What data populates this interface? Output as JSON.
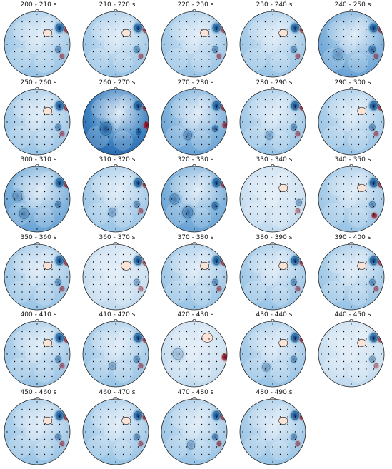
{
  "chart_data": {
    "type": "heatmap",
    "description_free": true,
    "colormap": [
      "#08306b",
      "#2171b5",
      "#6baed6",
      "#c6dbef",
      "#f7fbff",
      "#fddbc7",
      "#d6604d",
      "#b2182b",
      "#67001f"
    ],
    "panels": [
      {
        "title": "200 - 210 s",
        "bg": 0.3,
        "blobs": [
          [
            "B",
            0.84,
            0.25,
            0.16,
            1.0
          ],
          [
            "R",
            0.95,
            0.28,
            0.1,
            0.8
          ],
          [
            "P",
            0.66,
            0.33,
            0.12,
            0.5
          ],
          [
            "B",
            0.82,
            0.58,
            0.12,
            0.6
          ],
          [
            "R",
            0.88,
            0.68,
            0.09,
            0.6
          ]
        ]
      },
      {
        "title": "210 - 220 s",
        "bg": 0.28,
        "blobs": [
          [
            "B",
            0.84,
            0.25,
            0.16,
            1.0
          ],
          [
            "R",
            0.95,
            0.28,
            0.1,
            0.8
          ],
          [
            "P",
            0.66,
            0.33,
            0.12,
            0.5
          ],
          [
            "B",
            0.82,
            0.58,
            0.12,
            0.6
          ],
          [
            "R",
            0.88,
            0.68,
            0.09,
            0.6
          ]
        ]
      },
      {
        "title": "220 - 230 s",
        "bg": 0.26,
        "blobs": [
          [
            "B",
            0.84,
            0.25,
            0.16,
            1.0
          ],
          [
            "R",
            0.95,
            0.28,
            0.1,
            0.7
          ],
          [
            "P",
            0.66,
            0.33,
            0.12,
            0.5
          ],
          [
            "B",
            0.82,
            0.58,
            0.12,
            0.6
          ],
          [
            "R",
            0.88,
            0.68,
            0.09,
            0.6
          ]
        ]
      },
      {
        "title": "230 - 240 s",
        "bg": 0.3,
        "blobs": [
          [
            "B",
            0.84,
            0.25,
            0.16,
            1.0
          ],
          [
            "R",
            0.95,
            0.28,
            0.1,
            0.8
          ],
          [
            "P",
            0.66,
            0.33,
            0.12,
            0.5
          ],
          [
            "B",
            0.82,
            0.58,
            0.12,
            0.6
          ],
          [
            "R",
            0.88,
            0.68,
            0.09,
            0.6
          ]
        ]
      },
      {
        "title": "240 - 250 s",
        "bg": 0.45,
        "blobs": [
          [
            "B",
            0.84,
            0.25,
            0.16,
            1.0
          ],
          [
            "R",
            0.95,
            0.28,
            0.1,
            0.8
          ],
          [
            "B",
            0.82,
            0.58,
            0.14,
            0.8
          ],
          [
            "R",
            0.88,
            0.68,
            0.09,
            0.6
          ],
          [
            "B",
            0.3,
            0.65,
            0.22,
            0.4
          ]
        ]
      },
      {
        "title": "250 - 260 s",
        "bg": 0.3,
        "blobs": [
          [
            "B",
            0.84,
            0.25,
            0.16,
            1.0
          ],
          [
            "R",
            0.95,
            0.28,
            0.1,
            0.8
          ],
          [
            "P",
            0.66,
            0.33,
            0.12,
            0.5
          ],
          [
            "B",
            0.82,
            0.58,
            0.12,
            0.6
          ],
          [
            "R",
            0.88,
            0.68,
            0.09,
            0.6
          ]
        ]
      },
      {
        "title": "260 - 270 s",
        "bg": 0.75,
        "blobs": [
          [
            "B",
            0.84,
            0.25,
            0.16,
            1.0
          ],
          [
            "R",
            0.95,
            0.28,
            0.1,
            0.8
          ],
          [
            "R",
            0.97,
            0.55,
            0.12,
            1.0
          ],
          [
            "B",
            0.85,
            0.65,
            0.12,
            1.0
          ],
          [
            "B",
            0.35,
            0.6,
            0.25,
            0.8
          ]
        ]
      },
      {
        "title": "270 - 280 s",
        "bg": 0.5,
        "blobs": [
          [
            "B",
            0.84,
            0.25,
            0.16,
            1.0
          ],
          [
            "R",
            0.95,
            0.28,
            0.1,
            0.8
          ],
          [
            "R",
            0.97,
            0.55,
            0.1,
            0.8
          ],
          [
            "B",
            0.82,
            0.6,
            0.12,
            0.8
          ],
          [
            "B",
            0.4,
            0.7,
            0.18,
            0.5
          ]
        ]
      },
      {
        "title": "280 - 290 s",
        "bg": 0.4,
        "blobs": [
          [
            "B",
            0.84,
            0.25,
            0.16,
            1.0
          ],
          [
            "R",
            0.95,
            0.28,
            0.1,
            0.8
          ],
          [
            "B",
            0.82,
            0.58,
            0.12,
            0.6
          ],
          [
            "R",
            0.88,
            0.68,
            0.09,
            0.6
          ],
          [
            "B",
            0.45,
            0.7,
            0.16,
            0.4
          ]
        ]
      },
      {
        "title": "290 - 300 s",
        "bg": 0.3,
        "blobs": [
          [
            "B",
            0.84,
            0.25,
            0.16,
            1.0
          ],
          [
            "R",
            0.95,
            0.28,
            0.1,
            0.8
          ],
          [
            "P",
            0.66,
            0.33,
            0.12,
            0.5
          ],
          [
            "B",
            0.82,
            0.58,
            0.12,
            0.6
          ],
          [
            "R",
            0.88,
            0.68,
            0.09,
            0.6
          ]
        ]
      },
      {
        "title": "300 - 310 s",
        "bg": 0.45,
        "blobs": [
          [
            "B",
            0.84,
            0.25,
            0.16,
            1.0
          ],
          [
            "R",
            0.95,
            0.28,
            0.1,
            0.8
          ],
          [
            "B",
            0.82,
            0.58,
            0.12,
            0.6
          ],
          [
            "B",
            0.3,
            0.72,
            0.2,
            0.5
          ],
          [
            "B",
            0.2,
            0.45,
            0.2,
            0.4
          ]
        ]
      },
      {
        "title": "310 - 320 s",
        "bg": 0.35,
        "blobs": [
          [
            "B",
            0.84,
            0.25,
            0.16,
            1.0
          ],
          [
            "R",
            0.95,
            0.28,
            0.1,
            0.8
          ],
          [
            "B",
            0.82,
            0.58,
            0.12,
            0.6
          ],
          [
            "R",
            0.88,
            0.68,
            0.09,
            0.6
          ],
          [
            "B",
            0.45,
            0.7,
            0.16,
            0.4
          ]
        ]
      },
      {
        "title": "320 - 330 s",
        "bg": 0.55,
        "blobs": [
          [
            "B",
            0.84,
            0.25,
            0.16,
            1.0
          ],
          [
            "R",
            0.95,
            0.28,
            0.1,
            0.8
          ],
          [
            "B",
            0.82,
            0.6,
            0.14,
            0.8
          ],
          [
            "B",
            0.4,
            0.7,
            0.22,
            0.6
          ],
          [
            "B",
            0.2,
            0.5,
            0.2,
            0.5
          ]
        ]
      },
      {
        "title": "330 - 340 s",
        "bg": 0.15,
        "blobs": [
          [
            "P",
            0.66,
            0.33,
            0.12,
            0.5
          ],
          [
            "B",
            0.9,
            0.55,
            0.12,
            0.5
          ],
          [
            "R",
            0.88,
            0.68,
            0.09,
            0.5
          ]
        ]
      },
      {
        "title": "340 - 350 s",
        "bg": 0.3,
        "blobs": [
          [
            "B",
            0.84,
            0.25,
            0.16,
            1.0
          ],
          [
            "R",
            0.95,
            0.28,
            0.1,
            0.8
          ],
          [
            "P",
            0.66,
            0.33,
            0.12,
            0.5
          ],
          [
            "B",
            0.82,
            0.58,
            0.12,
            0.6
          ],
          [
            "R",
            0.85,
            0.75,
            0.1,
            0.9
          ]
        ]
      },
      {
        "title": "350 - 360 s",
        "bg": 0.28,
        "blobs": [
          [
            "B",
            0.84,
            0.25,
            0.16,
            1.0
          ],
          [
            "R",
            0.95,
            0.28,
            0.1,
            0.8
          ],
          [
            "P",
            0.66,
            0.33,
            0.12,
            0.5
          ],
          [
            "B",
            0.82,
            0.58,
            0.12,
            0.6
          ],
          [
            "R",
            0.88,
            0.68,
            0.09,
            0.6
          ]
        ]
      },
      {
        "title": "360 - 370 s",
        "bg": 0.22,
        "blobs": [
          [
            "B",
            0.84,
            0.25,
            0.16,
            1.0
          ],
          [
            "R",
            0.95,
            0.28,
            0.1,
            0.7
          ],
          [
            "P",
            0.66,
            0.33,
            0.14,
            0.6
          ],
          [
            "B",
            0.82,
            0.58,
            0.12,
            0.5
          ],
          [
            "R",
            0.88,
            0.68,
            0.09,
            0.5
          ]
        ]
      },
      {
        "title": "370 - 380 s",
        "bg": 0.28,
        "blobs": [
          [
            "B",
            0.84,
            0.25,
            0.16,
            1.0
          ],
          [
            "R",
            0.95,
            0.28,
            0.1,
            0.8
          ],
          [
            "P",
            0.66,
            0.33,
            0.12,
            0.5
          ],
          [
            "B",
            0.82,
            0.58,
            0.12,
            0.6
          ],
          [
            "R",
            0.88,
            0.68,
            0.09,
            0.6
          ]
        ]
      },
      {
        "title": "380 - 390 s",
        "bg": 0.28,
        "blobs": [
          [
            "B",
            0.84,
            0.25,
            0.16,
            1.0
          ],
          [
            "R",
            0.95,
            0.28,
            0.1,
            0.8
          ],
          [
            "P",
            0.66,
            0.33,
            0.12,
            0.5
          ],
          [
            "B",
            0.82,
            0.58,
            0.12,
            0.6
          ],
          [
            "R",
            0.88,
            0.68,
            0.09,
            0.6
          ]
        ]
      },
      {
        "title": "390 - 400 s",
        "bg": 0.28,
        "blobs": [
          [
            "B",
            0.84,
            0.25,
            0.16,
            1.0
          ],
          [
            "R",
            0.95,
            0.28,
            0.1,
            0.8
          ],
          [
            "P",
            0.66,
            0.33,
            0.12,
            0.5
          ],
          [
            "B",
            0.82,
            0.58,
            0.12,
            0.6
          ],
          [
            "R",
            0.88,
            0.68,
            0.09,
            0.6
          ]
        ]
      },
      {
        "title": "400 - 410 s",
        "bg": 0.35,
        "blobs": [
          [
            "B",
            0.84,
            0.25,
            0.16,
            1.0
          ],
          [
            "R",
            0.95,
            0.28,
            0.1,
            0.8
          ],
          [
            "P",
            0.66,
            0.33,
            0.12,
            0.4
          ],
          [
            "B",
            0.82,
            0.58,
            0.12,
            0.6
          ],
          [
            "R",
            0.88,
            0.68,
            0.09,
            0.6
          ]
        ]
      },
      {
        "title": "410 - 420 s",
        "bg": 0.32,
        "blobs": [
          [
            "B",
            0.84,
            0.25,
            0.16,
            1.0
          ],
          [
            "R",
            0.95,
            0.28,
            0.1,
            0.8
          ],
          [
            "B",
            0.82,
            0.58,
            0.12,
            0.6
          ],
          [
            "R",
            0.88,
            0.68,
            0.09,
            0.6
          ],
          [
            "B",
            0.45,
            0.68,
            0.14,
            0.4
          ]
        ]
      },
      {
        "title": "420 - 430 s",
        "bg": 0.1,
        "blobs": [
          [
            "R",
            0.97,
            0.55,
            0.12,
            1.0
          ],
          [
            "B",
            0.25,
            0.5,
            0.22,
            0.3
          ],
          [
            "P",
            0.7,
            0.25,
            0.15,
            0.4
          ]
        ]
      },
      {
        "title": "430 - 440 s",
        "bg": 0.32,
        "blobs": [
          [
            "B",
            0.84,
            0.25,
            0.16,
            1.0
          ],
          [
            "R",
            0.95,
            0.28,
            0.1,
            0.8
          ],
          [
            "P",
            0.66,
            0.33,
            0.12,
            0.5
          ],
          [
            "B",
            0.82,
            0.58,
            0.12,
            0.6
          ],
          [
            "B",
            0.4,
            0.7,
            0.16,
            0.4
          ]
        ]
      },
      {
        "title": "440 - 450 s",
        "bg": 0.22,
        "blobs": [
          [
            "B",
            0.84,
            0.25,
            0.16,
            1.0
          ],
          [
            "R",
            0.95,
            0.28,
            0.1,
            0.8
          ],
          [
            "P",
            0.66,
            0.33,
            0.12,
            0.5
          ],
          [
            "B",
            0.82,
            0.58,
            0.12,
            0.5
          ],
          [
            "R",
            0.88,
            0.68,
            0.09,
            0.5
          ]
        ]
      },
      {
        "title": "450 - 460 s",
        "bg": 0.28,
        "blobs": [
          [
            "B",
            0.84,
            0.25,
            0.16,
            1.0
          ],
          [
            "R",
            0.95,
            0.28,
            0.1,
            0.8
          ],
          [
            "P",
            0.66,
            0.33,
            0.12,
            0.5
          ],
          [
            "B",
            0.82,
            0.58,
            0.12,
            0.6
          ],
          [
            "R",
            0.88,
            0.68,
            0.09,
            0.6
          ]
        ]
      },
      {
        "title": "460 - 470 s",
        "bg": 0.28,
        "blobs": [
          [
            "B",
            0.84,
            0.25,
            0.16,
            1.0
          ],
          [
            "R",
            0.95,
            0.28,
            0.1,
            0.8
          ],
          [
            "P",
            0.66,
            0.33,
            0.12,
            0.5
          ],
          [
            "B",
            0.82,
            0.58,
            0.12,
            0.6
          ],
          [
            "R",
            0.88,
            0.68,
            0.09,
            0.6
          ]
        ]
      },
      {
        "title": "470 - 480 s",
        "bg": 0.32,
        "blobs": [
          [
            "B",
            0.84,
            0.25,
            0.16,
            1.0
          ],
          [
            "R",
            0.95,
            0.28,
            0.1,
            0.8
          ],
          [
            "B",
            0.82,
            0.58,
            0.12,
            0.7
          ],
          [
            "R",
            0.88,
            0.68,
            0.09,
            0.7
          ],
          [
            "B",
            0.45,
            0.7,
            0.16,
            0.4
          ]
        ]
      },
      {
        "title": "480 - 490 s",
        "bg": 0.3,
        "blobs": [
          [
            "B",
            0.84,
            0.25,
            0.16,
            1.0
          ],
          [
            "R",
            0.95,
            0.28,
            0.1,
            0.8
          ],
          [
            "P",
            0.66,
            0.33,
            0.12,
            0.5
          ],
          [
            "B",
            0.82,
            0.58,
            0.12,
            0.6
          ],
          [
            "R",
            0.88,
            0.68,
            0.09,
            0.6
          ]
        ]
      }
    ]
  }
}
